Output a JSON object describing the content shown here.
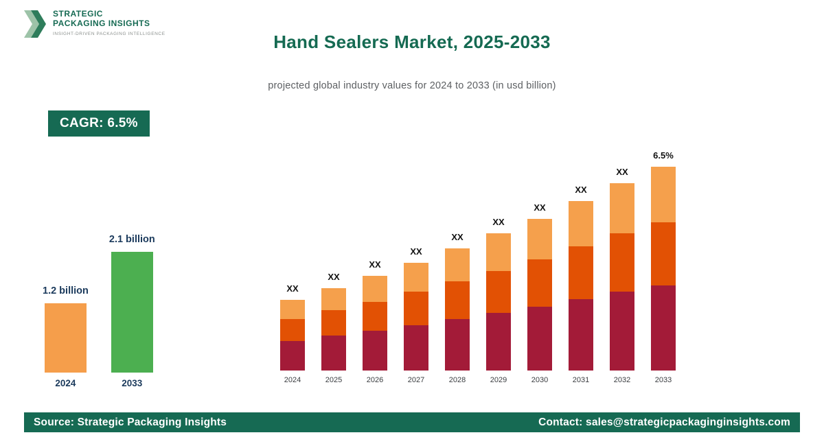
{
  "logo": {
    "line1": "STRATEGIC",
    "line2": "PACKAGING INSIGHTS",
    "tagline": "INSIGHT-DRIVEN PACKAGING INTELLIGENCE"
  },
  "header": {
    "title": "Hand Sealers Market, 2025-2033",
    "subtitle": "projected global industry values for 2024 to 2033 (in usd billion)"
  },
  "cagr_badge": "CAGR: 6.5%",
  "colors": {
    "accent_teal": "#166A53",
    "bar_orange": "#F59E4B",
    "bar_green": "#4CAF50",
    "stack_bottom": "#A31B38",
    "stack_middle": "#E25104",
    "stack_top": "#F5A04C"
  },
  "chart_data": [
    {
      "type": "bar",
      "name": "growth-summary",
      "categories": [
        "2024",
        "2033"
      ],
      "values": [
        1.2,
        2.1
      ],
      "value_labels": [
        "1.2 billion",
        "2.1 billion"
      ],
      "bar_colors": [
        "#F59E4B",
        "#4CAF50"
      ],
      "axis_visible": false
    },
    {
      "type": "bar",
      "subtype": "stacked",
      "name": "yearly-projection",
      "categories": [
        "2024",
        "2025",
        "2026",
        "2027",
        "2028",
        "2029",
        "2030",
        "2031",
        "2032",
        "2033"
      ],
      "series": [
        {
          "name": "segment-bottom",
          "color": "#A31B38",
          "values": [
            0.5,
            0.54,
            0.57,
            0.61,
            0.65,
            0.69,
            0.74,
            0.79,
            0.84,
            0.88
          ]
        },
        {
          "name": "segment-middle",
          "color": "#E25104",
          "values": [
            0.37,
            0.4,
            0.42,
            0.45,
            0.48,
            0.51,
            0.54,
            0.58,
            0.62,
            0.65
          ]
        },
        {
          "name": "segment-top",
          "color": "#F5A04C",
          "values": [
            0.33,
            0.34,
            0.37,
            0.39,
            0.42,
            0.45,
            0.47,
            0.5,
            0.53,
            0.57
          ]
        }
      ],
      "totals": [
        1.2,
        1.28,
        1.36,
        1.45,
        1.55,
        1.65,
        1.75,
        1.87,
        1.99,
        2.1
      ],
      "bar_labels": [
        "XX",
        "XX",
        "XX",
        "XX",
        "XX",
        "XX",
        "XX",
        "XX",
        "XX",
        "6.5%"
      ],
      "axis_visible": false
    }
  ],
  "footer": {
    "source": "Source: Strategic Packaging Insights",
    "contact": "Contact: sales@strategicpackaginginsights.com"
  }
}
